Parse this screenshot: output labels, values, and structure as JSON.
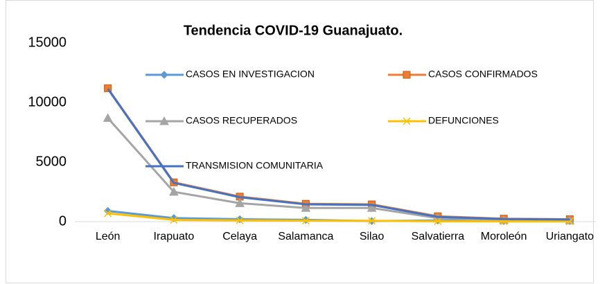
{
  "chart_data": {
    "type": "line",
    "title": "Tendencia COVID-19 Guanajuato.",
    "categories": [
      "León",
      "Irapuato",
      "Celaya",
      "Salamanca",
      "Silao",
      "Salvatierra",
      "Moroleón",
      "Uriangato"
    ],
    "ylim": [
      0,
      15000
    ],
    "yticks": [
      0,
      5000,
      10000,
      15000
    ],
    "grid": false,
    "series": [
      {
        "name": "CASOS EN INVESTIGACION",
        "color": "#5b9bd5",
        "marker": "diamond",
        "values": [
          900,
          300,
          200,
          150,
          50,
          100,
          50,
          50
        ]
      },
      {
        "name": "CASOS CONFIRMADOS",
        "color": "#ed7d31",
        "marker": "square",
        "values": [
          11200,
          3300,
          2100,
          1500,
          1450,
          450,
          250,
          200
        ]
      },
      {
        "name": "CASOS RECUPERADOS",
        "color": "#a5a5a5",
        "marker": "triangle",
        "values": [
          8700,
          2500,
          1550,
          1150,
          1150,
          300,
          120,
          100
        ]
      },
      {
        "name": "DEFUNCIONES",
        "color": "#ffc000",
        "marker": "x",
        "values": [
          700,
          150,
          100,
          80,
          70,
          30,
          20,
          20
        ]
      },
      {
        "name": "TRANSMISION COMUNITARIA",
        "color": "#4472c4",
        "marker": "none",
        "values": [
          11150,
          3250,
          2050,
          1450,
          1400,
          400,
          220,
          180
        ]
      }
    ]
  }
}
